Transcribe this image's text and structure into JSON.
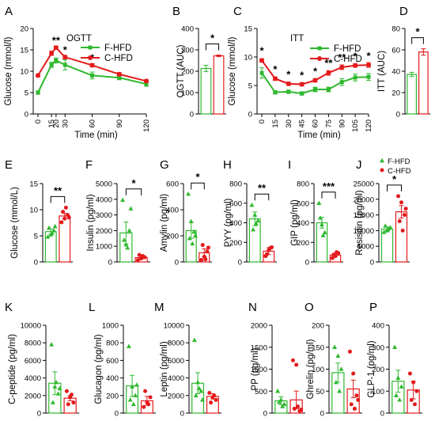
{
  "colors": {
    "fhfd": "#2eb82e",
    "chfd": "#e31a1c"
  },
  "legend": {
    "f": "F-HFD",
    "c": "C-HFD"
  },
  "chart_data": [
    {
      "panel": "A",
      "type": "line",
      "title": "OGTT",
      "xlabel": "Time (min)",
      "ylabel": "Glucose (mmol/l)",
      "xlim": [
        0,
        120
      ],
      "ylim": [
        0,
        20
      ],
      "xticks": [
        0,
        15,
        20,
        30,
        60,
        90,
        120
      ],
      "yticks": [
        0,
        5,
        10,
        15,
        20
      ],
      "series": [
        {
          "name": "F-HFD",
          "x": [
            0,
            15,
            20,
            30,
            60,
            90,
            120
          ],
          "values": [
            5.0,
            11.5,
            12.5,
            11.5,
            9.0,
            8.5,
            7.0
          ],
          "err": [
            0.4,
            0.6,
            0.6,
            1.2,
            0.8,
            0.5,
            0.5
          ]
        },
        {
          "name": "C-HFD",
          "x": [
            0,
            15,
            20,
            30,
            60,
            90,
            120
          ],
          "values": [
            9.0,
            14.2,
            15.5,
            13.3,
            11.4,
            9.3,
            7.7
          ],
          "err": [
            0.3,
            0.5,
            0.4,
            0.4,
            0.4,
            0.4,
            0.3
          ]
        }
      ],
      "stars": [
        {
          "x": 20,
          "y": 16.4,
          "label": "**"
        },
        {
          "x": 30,
          "y": 14.2,
          "label": "*"
        },
        {
          "x": 60,
          "y": 12.3,
          "label": "*"
        }
      ]
    },
    {
      "panel": "B",
      "type": "bar",
      "xlabel": "",
      "ylabel": "OGTT (AUC)",
      "ylim": [
        0,
        400
      ],
      "yticks": [
        0,
        100,
        200,
        300,
        400
      ],
      "series": [
        {
          "name": "F-HFD",
          "values": [
            213
          ],
          "err": [
            15
          ]
        },
        {
          "name": "C-HFD",
          "values": [
            272
          ],
          "err": [
            4
          ]
        }
      ],
      "sig": "*"
    },
    {
      "panel": "C",
      "type": "line",
      "title": "ITT",
      "xlabel": "Time (min)",
      "ylabel": "Glucose (mmol/l)",
      "xlim": [
        0,
        120
      ],
      "ylim": [
        0,
        15
      ],
      "xticks": [
        0,
        15,
        30,
        45,
        60,
        75,
        90,
        105,
        120
      ],
      "yticks": [
        0,
        5,
        10,
        15
      ],
      "series": [
        {
          "name": "F-HFD",
          "x": [
            0,
            15,
            30,
            45,
            60,
            75,
            90,
            105,
            120
          ],
          "values": [
            7.2,
            3.8,
            3.9,
            3.6,
            4.3,
            4.3,
            5.6,
            6.4,
            6.5
          ],
          "err": [
            0.9,
            0.3,
            0.3,
            0.3,
            0.4,
            0.4,
            0.6,
            0.6,
            0.6
          ]
        },
        {
          "name": "C-HFD",
          "x": [
            0,
            15,
            30,
            45,
            60,
            75,
            90,
            105,
            120
          ],
          "values": [
            9.4,
            6.2,
            5.3,
            5.2,
            5.9,
            7.2,
            8.2,
            8.5,
            8.6
          ],
          "err": [
            0.3,
            0.3,
            0.3,
            0.3,
            0.3,
            0.4,
            0.4,
            0.3,
            0.4
          ]
        }
      ],
      "stars": [
        {
          "x": 0,
          "y": 10.5,
          "label": "*"
        },
        {
          "x": 15,
          "y": 7.2,
          "label": "*"
        },
        {
          "x": 30,
          "y": 6.3,
          "label": "*"
        },
        {
          "x": 45,
          "y": 6.2,
          "label": "*"
        },
        {
          "x": 60,
          "y": 6.9,
          "label": "*"
        },
        {
          "x": 75,
          "y": 8.3,
          "label": "**"
        },
        {
          "x": 90,
          "y": 9.3,
          "label": "**"
        },
        {
          "x": 105,
          "y": 9.5,
          "label": "*"
        },
        {
          "x": 120,
          "y": 9.6,
          "label": "*"
        }
      ]
    },
    {
      "panel": "D",
      "type": "bar",
      "xlabel": "",
      "ylabel": "ITT (AUC)",
      "ylim": [
        0,
        80
      ],
      "yticks": [
        0,
        20,
        40,
        60,
        80
      ],
      "series": [
        {
          "name": "F-HFD",
          "values": [
            37
          ],
          "err": [
            2
          ]
        },
        {
          "name": "C-HFD",
          "values": [
            58
          ],
          "err": [
            3
          ]
        }
      ],
      "sig": "*"
    },
    {
      "panel": "E",
      "type": "bar",
      "ylabel": "Glucose (mmol/L)",
      "ylim": [
        0,
        15
      ],
      "yticks": [
        0,
        5,
        10,
        15
      ],
      "yticklabels": [
        "0",
        "5",
        "10",
        "15"
      ],
      "series": [
        {
          "name": "F-HFD",
          "values": [
            5.8
          ],
          "err": [
            0.5
          ],
          "points": [
            4.8,
            5.2,
            6.0,
            6.5,
            5.5,
            6.8
          ]
        },
        {
          "name": "C-HFD",
          "values": [
            8.8
          ],
          "err": [
            0.5
          ],
          "points": [
            7.6,
            8.3,
            9.0,
            9.6,
            10.4,
            8.5
          ]
        }
      ],
      "sig": "**"
    },
    {
      "panel": "F",
      "type": "bar",
      "ylabel": "Insulin (pg/ml)",
      "ylim": [
        0,
        5000
      ],
      "yticks": [
        0,
        1000,
        2000,
        3000,
        4000,
        5000
      ],
      "yticklabels": [
        "0",
        "1000",
        "2000",
        "3000",
        "4000",
        "5000"
      ],
      "series": [
        {
          "name": "F-HFD",
          "values": [
            1850
          ],
          "err": [
            700
          ],
          "points": [
            3950,
            1100,
            2000,
            1400,
            900,
            3400
          ]
        },
        {
          "name": "C-HFD",
          "values": [
            280
          ],
          "err": [
            80
          ],
          "points": [
            120,
            220,
            300,
            450,
            380
          ]
        }
      ],
      "sig": "*"
    },
    {
      "panel": "G",
      "type": "bar",
      "ylabel": "Amylin (pg/ml)",
      "ylim": [
        0,
        600
      ],
      "yticks": [
        0,
        200,
        400,
        600
      ],
      "yticklabels": [
        "0",
        "200",
        "400",
        "600"
      ],
      "series": [
        {
          "name": "F-HFD",
          "values": [
            240
          ],
          "err": [
            60
          ],
          "points": [
            520,
            310,
            230,
            180,
            140,
            200
          ]
        },
        {
          "name": "C-HFD",
          "values": [
            70
          ],
          "err": [
            30
          ],
          "points": [
            15,
            40,
            80,
            130,
            20,
            110
          ]
        }
      ],
      "sig": "*"
    },
    {
      "panel": "H",
      "type": "bar",
      "ylabel": "PYY (pg/ml)",
      "ylim": [
        0,
        800
      ],
      "yticks": [
        0,
        200,
        400,
        600,
        800
      ],
      "yticklabels": [
        "0",
        "200",
        "400",
        "600",
        "800"
      ],
      "series": [
        {
          "name": "F-HFD",
          "values": [
            440
          ],
          "err": [
            70
          ],
          "points": [
            580,
            480,
            420,
            330,
            390
          ]
        },
        {
          "name": "C-HFD",
          "values": [
            110
          ],
          "err": [
            35
          ],
          "points": [
            60,
            120,
            150,
            80,
            140
          ]
        }
      ],
      "sig": "**"
    },
    {
      "panel": "I",
      "type": "bar",
      "ylabel": "GIP (pg/ml)",
      "ylim": [
        0,
        800
      ],
      "yticks": [
        0,
        200,
        400,
        600,
        800
      ],
      "yticklabels": [
        "0",
        "200",
        "400",
        "600",
        "800"
      ],
      "series": [
        {
          "name": "F-HFD",
          "values": [
            400
          ],
          "err": [
            55
          ],
          "points": [
            600,
            380,
            300,
            450,
            270
          ]
        },
        {
          "name": "C-HFD",
          "values": [
            70
          ],
          "err": [
            15
          ],
          "points": [
            40,
            60,
            90,
            75,
            100
          ]
        }
      ],
      "sig": "***"
    },
    {
      "panel": "J",
      "type": "bar",
      "ylabel": "Resisitin (pg/ml)",
      "ylim": [
        0,
        25000
      ],
      "yticks": [
        0,
        5000,
        10000,
        15000,
        20000,
        25000
      ],
      "yticklabels": [
        "0",
        "5000",
        "10000",
        "15000",
        "20000",
        "25000"
      ],
      "series": [
        {
          "name": "F-HFD",
          "values": [
            10500
          ],
          "err": [
            600
          ],
          "points": [
            9500,
            10000,
            11000,
            11500,
            10500
          ]
        },
        {
          "name": "C-HFD",
          "values": [
            16000
          ],
          "err": [
            2000
          ],
          "points": [
            21000,
            19000,
            15000,
            13000,
            10000,
            17000
          ]
        }
      ],
      "sig": "*"
    },
    {
      "panel": "K",
      "type": "bar",
      "ylabel": "C-peptide (pg/ml)",
      "ylim": [
        0,
        10000
      ],
      "yticks": [
        0,
        2000,
        4000,
        6000,
        8000,
        10000
      ],
      "yticklabels": [
        "0",
        "2000",
        "4000",
        "6000",
        "8000",
        "10000"
      ],
      "series": [
        {
          "name": "F-HFD",
          "values": [
            3400
          ],
          "err": [
            1300
          ],
          "points": [
            7800,
            3000,
            2200,
            1200,
            3500,
            2800
          ]
        },
        {
          "name": "C-HFD",
          "values": [
            1700
          ],
          "err": [
            300
          ],
          "points": [
            2500,
            1800,
            1200,
            1000,
            2100
          ]
        }
      ]
    },
    {
      "panel": "L",
      "type": "bar",
      "ylabel": "Glucagon (pg/ml)",
      "ylim": [
        0,
        1000
      ],
      "yticks": [
        0,
        200,
        400,
        600,
        800,
        1000
      ],
      "yticklabels": [
        "0",
        "200",
        "400",
        "600",
        "800",
        "1000"
      ],
      "series": [
        {
          "name": "F-HFD",
          "values": [
            310
          ],
          "err": [
            120
          ],
          "points": [
            760,
            300,
            200,
            150,
            100,
            320
          ]
        },
        {
          "name": "C-HFD",
          "values": [
            140
          ],
          "err": [
            50
          ],
          "points": [
            70,
            120,
            180,
            250,
            100
          ]
        }
      ]
    },
    {
      "panel": "M",
      "type": "bar",
      "ylabel": "Leptin (pg/ml)",
      "ylim": [
        0,
        10000
      ],
      "yticks": [
        0,
        2000,
        4000,
        6000,
        8000,
        10000
      ],
      "yticklabels": [
        "0",
        "2000",
        "4000",
        "6000",
        "8000",
        "10000"
      ],
      "series": [
        {
          "name": "F-HFD",
          "values": [
            3400
          ],
          "err": [
            1200
          ],
          "points": [
            8300,
            3500,
            2500,
            2000,
            2800,
            1500
          ]
        },
        {
          "name": "C-HFD",
          "values": [
            1900
          ],
          "err": [
            300
          ],
          "points": [
            2300,
            1800,
            1500,
            1200,
            2000
          ]
        }
      ]
    },
    {
      "panel": "N",
      "type": "bar",
      "ylabel": "PP (pg/ml)",
      "ylim": [
        0,
        2000
      ],
      "yticks": [
        0,
        500,
        1000,
        1500,
        2000
      ],
      "yticklabels": [
        "0",
        "500",
        "1000",
        "1500",
        "2000"
      ],
      "series": [
        {
          "name": "F-HFD",
          "values": [
            280
          ],
          "err": [
            90
          ],
          "points": [
            500,
            300,
            200,
            250,
            150
          ]
        },
        {
          "name": "C-HFD",
          "values": [
            300
          ],
          "err": [
            200
          ],
          "points": [
            1200,
            1100,
            50,
            100,
            150,
            80
          ]
        }
      ]
    },
    {
      "panel": "O",
      "type": "bar",
      "ylabel": "Ghrelin (pg/ml)",
      "ylim": [
        0,
        200
      ],
      "yticks": [
        0,
        50,
        100,
        150,
        200
      ],
      "yticklabels": [
        "0",
        "50",
        "100",
        "150",
        "200"
      ],
      "series": [
        {
          "name": "F-HFD",
          "values": [
            92
          ],
          "err": [
            22
          ],
          "points": [
            150,
            130,
            100,
            70,
            50
          ]
        },
        {
          "name": "C-HFD",
          "values": [
            55
          ],
          "err": [
            20
          ],
          "points": [
            140,
            90,
            40,
            20,
            10,
            30
          ]
        }
      ]
    },
    {
      "panel": "P",
      "type": "bar",
      "ylabel": "GLP-1 (pg/ml)",
      "ylim": [
        0,
        400
      ],
      "yticks": [
        0,
        100,
        200,
        300,
        400
      ],
      "yticklabels": [
        "0",
        "100",
        "200",
        "300",
        "400"
      ],
      "series": [
        {
          "name": "F-HFD",
          "values": [
            145
          ],
          "err": [
            50
          ],
          "points": [
            300,
            160,
            120,
            80,
            60
          ]
        },
        {
          "name": "C-HFD",
          "values": [
            105
          ],
          "err": [
            40
          ],
          "points": [
            180,
            140,
            100,
            60,
            40
          ]
        }
      ]
    }
  ]
}
